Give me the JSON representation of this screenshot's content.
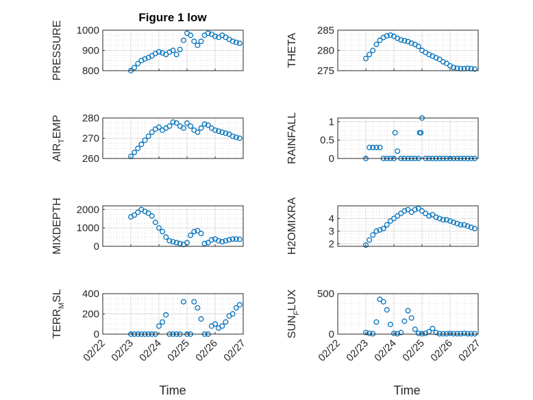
{
  "figure": {
    "title": "Figure 1 low",
    "xlabel": "Time",
    "date_ticks": [
      "02/22",
      "02/23",
      "02/24",
      "02/25",
      "02/26",
      "02/27"
    ]
  },
  "colors": {
    "series": "#0072bd",
    "axis": "#262626"
  },
  "chart_data": [
    {
      "id": "pressure",
      "type": "scatter",
      "col": 0,
      "row": 0,
      "ylabel_main": "PRESSURE",
      "ylabel_sub": "",
      "ylabel_rest": "",
      "ylim": [
        800,
        1000
      ],
      "yticks": [
        "800",
        "900",
        "1000"
      ],
      "ytick_values": [
        800,
        900,
        1000
      ],
      "x": [
        "02/23 00:00",
        "02/23 03:00",
        "02/23 06:00",
        "02/23 09:00",
        "02/23 12:00",
        "02/23 15:00",
        "02/23 18:00",
        "02/23 21:00",
        "02/24 00:00",
        "02/24 03:00",
        "02/24 06:00",
        "02/24 09:00",
        "02/24 12:00",
        "02/24 15:00",
        "02/24 18:00",
        "02/24 21:00",
        "02/25 00:00",
        "02/25 03:00",
        "02/25 06:00",
        "02/25 09:00",
        "02/25 12:00",
        "02/25 15:00",
        "02/25 18:00",
        "02/25 21:00",
        "02/26 00:00",
        "02/26 03:00",
        "02/26 06:00",
        "02/26 09:00",
        "02/26 12:00",
        "02/26 15:00",
        "02/26 18:00",
        "02/26 21:00"
      ],
      "y": [
        800,
        815,
        835,
        850,
        858,
        865,
        873,
        885,
        893,
        888,
        880,
        892,
        900,
        880,
        905,
        950,
        985,
        975,
        945,
        925,
        945,
        975,
        985,
        980,
        970,
        965,
        975,
        965,
        955,
        945,
        940,
        935
      ]
    },
    {
      "id": "theta",
      "type": "scatter",
      "col": 1,
      "row": 0,
      "ylabel_main": "THETA",
      "ylabel_sub": "",
      "ylabel_rest": "",
      "ylim": [
        275,
        285
      ],
      "yticks": [
        "275",
        "280",
        "285"
      ],
      "ytick_values": [
        275,
        280,
        285
      ],
      "x": [
        "02/23 00:00",
        "02/23 03:00",
        "02/23 06:00",
        "02/23 09:00",
        "02/23 12:00",
        "02/23 15:00",
        "02/23 18:00",
        "02/23 21:00",
        "02/24 00:00",
        "02/24 03:00",
        "02/24 06:00",
        "02/24 09:00",
        "02/24 12:00",
        "02/24 15:00",
        "02/24 18:00",
        "02/24 21:00",
        "02/25 00:00",
        "02/25 03:00",
        "02/25 06:00",
        "02/25 09:00",
        "02/25 12:00",
        "02/25 15:00",
        "02/25 18:00",
        "02/25 21:00",
        "02/26 00:00",
        "02/26 03:00",
        "02/26 06:00",
        "02/26 09:00",
        "02/26 12:00",
        "02/26 15:00",
        "02/26 18:00",
        "02/26 21:00"
      ],
      "y": [
        278,
        279,
        280,
        281.5,
        282.5,
        283.2,
        283.6,
        283.8,
        283.5,
        283,
        282.6,
        282.4,
        282.2,
        281.8,
        281.5,
        281,
        280,
        279.5,
        279,
        278.6,
        278.2,
        277.8,
        277.2,
        276.8,
        276.2,
        275.8,
        275.6,
        275.5,
        275.5,
        275.6,
        275.5,
        275.4
      ]
    },
    {
      "id": "air_temp",
      "type": "scatter",
      "col": 0,
      "row": 1,
      "ylabel_main": "AIR",
      "ylabel_sub": "T",
      "ylabel_rest": "EMP",
      "ylim": [
        260,
        280
      ],
      "yticks": [
        "260",
        "270",
        "280"
      ],
      "ytick_values": [
        260,
        270,
        280
      ],
      "x": [
        "02/23 00:00",
        "02/23 03:00",
        "02/23 06:00",
        "02/23 09:00",
        "02/23 12:00",
        "02/23 15:00",
        "02/23 18:00",
        "02/23 21:00",
        "02/24 00:00",
        "02/24 03:00",
        "02/24 06:00",
        "02/24 09:00",
        "02/24 12:00",
        "02/24 15:00",
        "02/24 18:00",
        "02/24 21:00",
        "02/25 00:00",
        "02/25 03:00",
        "02/25 06:00",
        "02/25 09:00",
        "02/25 12:00",
        "02/25 15:00",
        "02/25 18:00",
        "02/25 21:00",
        "02/26 00:00",
        "02/26 03:00",
        "02/26 06:00",
        "02/26 09:00",
        "02/26 12:00",
        "02/26 15:00",
        "02/26 18:00",
        "02/26 21:00"
      ],
      "y": [
        261,
        263,
        265,
        267,
        269,
        271,
        273,
        274.5,
        275.5,
        274,
        275,
        276,
        278,
        277.5,
        276,
        275,
        277.5,
        276,
        274,
        273,
        275,
        277,
        276.5,
        275,
        274,
        273.5,
        273,
        272.5,
        272,
        271,
        270.5,
        270
      ]
    },
    {
      "id": "rainfall",
      "type": "scatter",
      "col": 1,
      "row": 1,
      "ylabel_main": "RAINFALL",
      "ylabel_sub": "",
      "ylabel_rest": "",
      "ylim": [
        0,
        1.1
      ],
      "yticks": [
        "0",
        "0.5",
        "1"
      ],
      "ytick_values": [
        0,
        0.5,
        1
      ],
      "x": [
        "02/23 00:00",
        "02/23 03:00",
        "02/23 06:00",
        "02/23 09:00",
        "02/23 12:00",
        "02/23 15:00",
        "02/23 18:00",
        "02/23 21:00",
        "02/24 00:00",
        "02/24 01:00",
        "02/24 03:00",
        "02/24 06:00",
        "02/24 09:00",
        "02/24 12:00",
        "02/24 15:00",
        "02/24 18:00",
        "02/24 21:00",
        "02/24 22:00",
        "02/24 23:00",
        "02/25 00:00",
        "02/25 03:00",
        "02/25 06:00",
        "02/25 09:00",
        "02/25 12:00",
        "02/25 15:00",
        "02/25 18:00",
        "02/25 21:00",
        "02/26 00:00",
        "02/26 03:00",
        "02/26 06:00",
        "02/26 09:00",
        "02/26 12:00",
        "02/26 15:00",
        "02/26 18:00",
        "02/26 21:00"
      ],
      "y": [
        0,
        0.3,
        0.3,
        0.3,
        0.3,
        0,
        0,
        0,
        0,
        0.7,
        0.2,
        0,
        0,
        0,
        0,
        0,
        0,
        0.7,
        0.7,
        1.1,
        0,
        0,
        0,
        0,
        0,
        0,
        0,
        0,
        0,
        0,
        0,
        0,
        0,
        0,
        0
      ]
    },
    {
      "id": "mixdepth",
      "type": "scatter",
      "col": 0,
      "row": 2,
      "ylabel_main": "MIXDEPTH",
      "ylabel_sub": "",
      "ylabel_rest": "",
      "ylim": [
        0,
        2200
      ],
      "yticks": [
        "0",
        "1000",
        "2000"
      ],
      "ytick_values": [
        0,
        1000,
        2000
      ],
      "x": [
        "02/23 00:00",
        "02/23 03:00",
        "02/23 06:00",
        "02/23 09:00",
        "02/23 12:00",
        "02/23 15:00",
        "02/23 18:00",
        "02/23 21:00",
        "02/24 00:00",
        "02/24 03:00",
        "02/24 06:00",
        "02/24 09:00",
        "02/24 12:00",
        "02/24 15:00",
        "02/24 18:00",
        "02/24 21:00",
        "02/25 00:00",
        "02/25 03:00",
        "02/25 06:00",
        "02/25 09:00",
        "02/25 12:00",
        "02/25 15:00",
        "02/25 18:00",
        "02/25 21:00",
        "02/26 00:00",
        "02/26 03:00",
        "02/26 06:00",
        "02/26 09:00",
        "02/26 12:00",
        "02/26 15:00",
        "02/26 18:00",
        "02/26 21:00"
      ],
      "y": [
        1600,
        1700,
        1850,
        2000,
        1900,
        1800,
        1650,
        1300,
        1000,
        800,
        500,
        300,
        250,
        200,
        150,
        100,
        200,
        600,
        800,
        850,
        700,
        150,
        200,
        350,
        400,
        300,
        250,
        300,
        350,
        400,
        400,
        380
      ]
    },
    {
      "id": "h2omixra",
      "type": "scatter",
      "col": 1,
      "row": 2,
      "ylabel_main": "H2OMIXRA",
      "ylabel_sub": "",
      "ylabel_rest": "",
      "ylim": [
        1.8,
        5
      ],
      "yticks": [
        "2",
        "3",
        "4"
      ],
      "ytick_values": [
        2,
        3,
        4
      ],
      "x": [
        "02/23 00:00",
        "02/23 03:00",
        "02/23 06:00",
        "02/23 09:00",
        "02/23 12:00",
        "02/23 15:00",
        "02/23 18:00",
        "02/23 21:00",
        "02/24 00:00",
        "02/24 03:00",
        "02/24 06:00",
        "02/24 09:00",
        "02/24 12:00",
        "02/24 15:00",
        "02/24 18:00",
        "02/24 21:00",
        "02/25 00:00",
        "02/25 03:00",
        "02/25 06:00",
        "02/25 09:00",
        "02/25 12:00",
        "02/25 15:00",
        "02/25 18:00",
        "02/25 21:00",
        "02/26 00:00",
        "02/26 03:00",
        "02/26 06:00",
        "02/26 09:00",
        "02/26 12:00",
        "02/26 15:00",
        "02/26 18:00",
        "02/26 21:00"
      ],
      "y": [
        1.9,
        2.3,
        2.7,
        3,
        3.1,
        3.2,
        3.5,
        3.8,
        4,
        4.2,
        4.4,
        4.6,
        4.7,
        4.5,
        4.7,
        4.8,
        4.6,
        4.4,
        4.2,
        4.3,
        4.1,
        4,
        3.9,
        3.9,
        3.8,
        3.7,
        3.6,
        3.5,
        3.5,
        3.4,
        3.3,
        3.2
      ]
    },
    {
      "id": "terr_msl",
      "type": "scatter",
      "col": 0,
      "row": 3,
      "ylabel_main": "TERR",
      "ylabel_sub": "M",
      "ylabel_rest": "SL",
      "ylim": [
        0,
        400
      ],
      "yticks": [
        "0",
        "200",
        "400"
      ],
      "ytick_values": [
        0,
        200,
        400
      ],
      "x": [
        "02/23 00:00",
        "02/23 03:00",
        "02/23 06:00",
        "02/23 09:00",
        "02/23 12:00",
        "02/23 15:00",
        "02/23 18:00",
        "02/23 21:00",
        "02/24 00:00",
        "02/24 03:00",
        "02/24 06:00",
        "02/24 09:00",
        "02/24 12:00",
        "02/24 15:00",
        "02/24 18:00",
        "02/24 21:00",
        "02/25 00:00",
        "02/25 03:00",
        "02/25 06:00",
        "02/25 09:00",
        "02/25 12:00",
        "02/25 15:00",
        "02/25 18:00",
        "02/25 21:00",
        "02/26 00:00",
        "02/26 03:00",
        "02/26 06:00",
        "02/26 09:00",
        "02/26 12:00",
        "02/26 15:00",
        "02/26 18:00",
        "02/26 21:00"
      ],
      "y": [
        0,
        0,
        0,
        0,
        0,
        0,
        0,
        0,
        80,
        120,
        190,
        0,
        0,
        0,
        0,
        320,
        0,
        0,
        320,
        260,
        150,
        0,
        0,
        80,
        100,
        60,
        80,
        120,
        180,
        200,
        260,
        290
      ]
    },
    {
      "id": "sun_flux",
      "type": "scatter",
      "col": 1,
      "row": 3,
      "ylabel_main": "SUN",
      "ylabel_sub": "F",
      "ylabel_rest": "LUX",
      "ylim": [
        0,
        500
      ],
      "yticks": [
        "0",
        "500"
      ],
      "ytick_values": [
        0,
        500
      ],
      "x": [
        "02/23 00:00",
        "02/23 03:00",
        "02/23 06:00",
        "02/23 09:00",
        "02/23 12:00",
        "02/23 15:00",
        "02/23 18:00",
        "02/23 21:00",
        "02/24 00:00",
        "02/24 03:00",
        "02/24 06:00",
        "02/24 09:00",
        "02/24 12:00",
        "02/24 15:00",
        "02/24 18:00",
        "02/24 21:00",
        "02/25 00:00",
        "02/25 03:00",
        "02/25 06:00",
        "02/25 09:00",
        "02/25 12:00",
        "02/25 15:00",
        "02/25 18:00",
        "02/25 21:00",
        "02/26 00:00",
        "02/26 03:00",
        "02/26 06:00",
        "02/26 09:00",
        "02/26 12:00",
        "02/26 15:00",
        "02/26 18:00",
        "02/26 21:00"
      ],
      "y": [
        20,
        10,
        5,
        150,
        430,
        400,
        300,
        120,
        10,
        5,
        20,
        160,
        290,
        200,
        60,
        10,
        5,
        10,
        30,
        70,
        20,
        5,
        5,
        5,
        10,
        5,
        5,
        5,
        10,
        5,
        5,
        5
      ]
    }
  ]
}
